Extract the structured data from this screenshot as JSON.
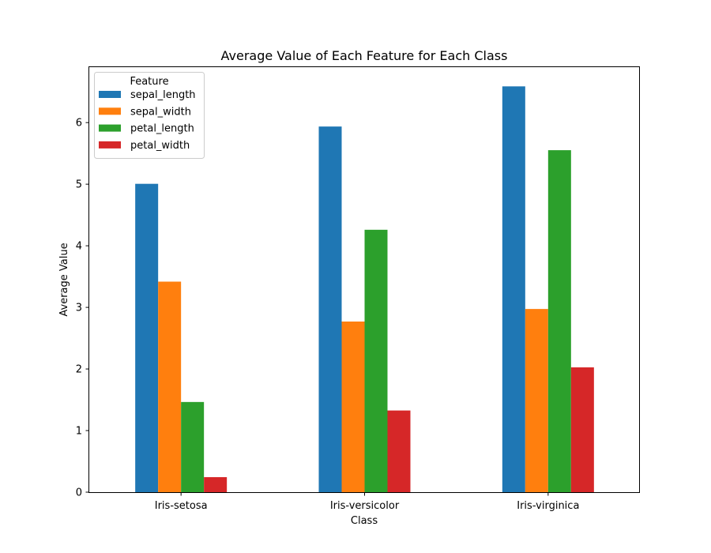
{
  "chart_data": {
    "type": "bar",
    "title": "Average Value of Each Feature for Each Class",
    "xlabel": "Class",
    "ylabel": "Average Value",
    "categories": [
      "Iris-setosa",
      "Iris-versicolor",
      "Iris-virginica"
    ],
    "ylim": [
      0,
      6.9
    ],
    "yticks": [
      0,
      1,
      2,
      3,
      4,
      5,
      6
    ],
    "grid": false,
    "legend": {
      "title": "Feature",
      "placement": "top-left"
    },
    "series": [
      {
        "name": "sepal_length",
        "color": "#1f77b4",
        "values": [
          5.006,
          5.936,
          6.588
        ]
      },
      {
        "name": "sepal_width",
        "color": "#ff7f0e",
        "values": [
          3.418,
          2.77,
          2.974
        ]
      },
      {
        "name": "petal_length",
        "color": "#2ca02c",
        "values": [
          1.464,
          4.26,
          5.552
        ]
      },
      {
        "name": "petal_width",
        "color": "#d62728",
        "values": [
          0.244,
          1.326,
          2.026
        ]
      }
    ]
  }
}
